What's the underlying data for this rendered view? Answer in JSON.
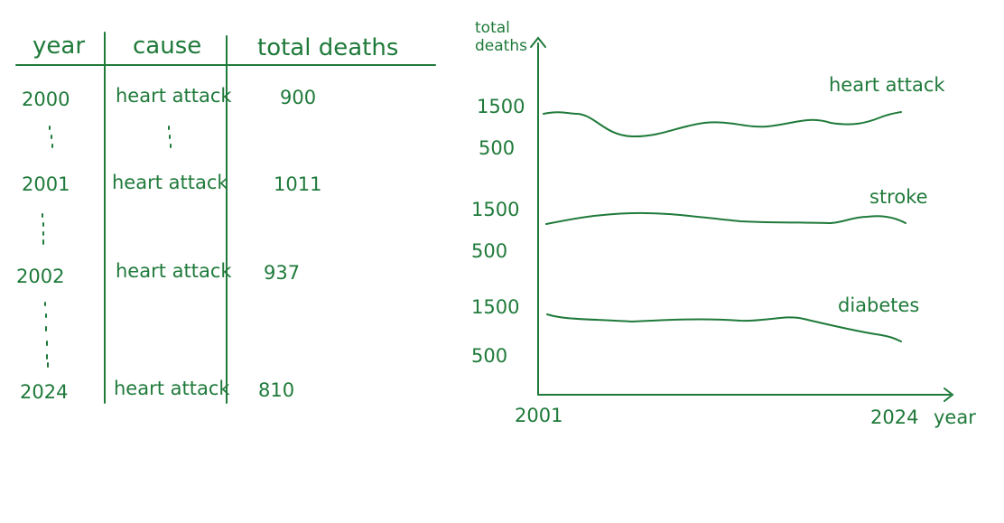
{
  "ink_color": "#1f7a3a",
  "table": {
    "headers": [
      "year",
      "cause",
      "total deaths"
    ],
    "rows": [
      {
        "year": "2000",
        "cause": "heart attack",
        "deaths": "900"
      },
      {
        "year": "2001",
        "cause": "heart attack",
        "deaths": "1011"
      },
      {
        "year": "2002",
        "cause": "heart attack",
        "deaths": "937"
      },
      {
        "year": "2024",
        "cause": "heart attack",
        "deaths": "810"
      }
    ]
  },
  "chart": {
    "ylabel": "total deaths",
    "xlabel": "year",
    "x_start": "2001",
    "x_end": "2024",
    "series": [
      {
        "name": "heart attack",
        "tick_high": "1500",
        "tick_low": "500"
      },
      {
        "name": "stroke",
        "tick_high": "1500",
        "tick_low": "500"
      },
      {
        "name": "diabetes",
        "tick_high": "1500",
        "tick_low": "500"
      }
    ]
  }
}
